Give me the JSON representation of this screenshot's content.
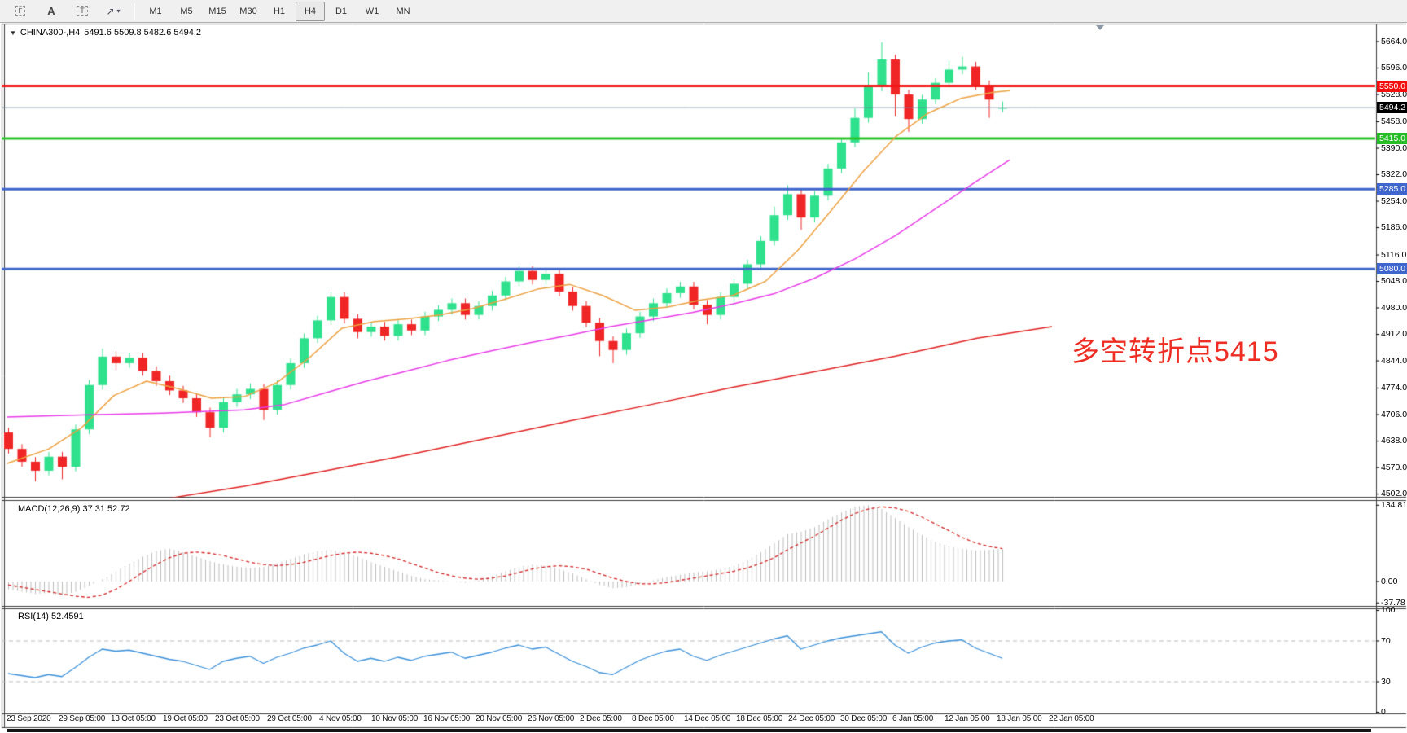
{
  "toolbar": {
    "tools": [
      {
        "name": "fibo-grid-tool",
        "glyph": "F"
      },
      {
        "name": "text-label-tool",
        "glyph": "A"
      },
      {
        "name": "text-box-tool",
        "glyph": "T"
      },
      {
        "name": "arrow-objects-tool",
        "glyph": "↗"
      }
    ],
    "timeframes": [
      "M1",
      "M5",
      "M15",
      "M30",
      "H1",
      "H4",
      "D1",
      "W1",
      "MN"
    ],
    "active_timeframe": "H4"
  },
  "chart": {
    "symbol_title": "CHINA300-,H4",
    "ohlc_text": "5491.6 5509.8 5482.6 5494.2"
  },
  "annotation": {
    "text": "多空转折点5415",
    "color": "#ee2e24"
  },
  "macd": {
    "label": "MACD(12,26,9) 37.31 52.72"
  },
  "rsi": {
    "label": "RSI(14) 52.4591"
  },
  "chart_data": {
    "type": "candlestick",
    "symbol": "CHINA300-",
    "timeframe": "H4",
    "current": {
      "open": 5491.6,
      "high": 5509.8,
      "low": 5482.6,
      "close": 5494.2
    },
    "price_axis": {
      "min": 4502.0,
      "max": 5664.0,
      "ticks": [
        5664.0,
        5596.0,
        5528.0,
        5458.0,
        5390.0,
        5322.0,
        5254.0,
        5186.0,
        5116.0,
        5048.0,
        4980.0,
        4912.0,
        4844.0,
        4774.0,
        4706.0,
        4638.0,
        4570.0,
        4502.0
      ]
    },
    "levels": [
      {
        "price": 5550.0,
        "label": "5550.0",
        "color": "#f21616",
        "thickness": 3,
        "badge": "#f40f0f"
      },
      {
        "price": 5494.2,
        "label": "5494.2",
        "color": "#708090",
        "thickness": 1,
        "badge": "#000000"
      },
      {
        "price": 5415.0,
        "label": "5415.0",
        "color": "#2cc32c",
        "thickness": 3,
        "badge": "#27bd27"
      },
      {
        "price": 5285.0,
        "label": "5285.0",
        "color": "#3f66cc",
        "thickness": 3,
        "badge": "#3f66cc"
      },
      {
        "price": 5080.0,
        "label": "5080.0",
        "color": "#3f66cc",
        "thickness": 3,
        "badge": "#3f66cc"
      }
    ],
    "bull_color": "#2fe08d",
    "bear_color": "#f02525",
    "candles": [
      [
        4660,
        4672,
        4606,
        4618
      ],
      [
        4618,
        4630,
        4572,
        4585
      ],
      [
        4585,
        4597,
        4535,
        4562
      ],
      [
        4562,
        4610,
        4550,
        4598
      ],
      [
        4598,
        4610,
        4540,
        4572
      ],
      [
        4572,
        4680,
        4560,
        4668
      ],
      [
        4668,
        4795,
        4656,
        4782
      ],
      [
        4782,
        4876,
        4770,
        4855
      ],
      [
        4855,
        4868,
        4820,
        4838
      ],
      [
        4838,
        4865,
        4826,
        4852
      ],
      [
        4852,
        4864,
        4806,
        4818
      ],
      [
        4818,
        4830,
        4780,
        4792
      ],
      [
        4792,
        4806,
        4756,
        4768
      ],
      [
        4768,
        4780,
        4736,
        4748
      ],
      [
        4748,
        4760,
        4700,
        4712
      ],
      [
        4712,
        4724,
        4648,
        4672
      ],
      [
        4672,
        4750,
        4660,
        4738
      ],
      [
        4738,
        4772,
        4726,
        4758
      ],
      [
        4758,
        4786,
        4746,
        4772
      ],
      [
        4772,
        4784,
        4692,
        4718
      ],
      [
        4718,
        4794,
        4706,
        4782
      ],
      [
        4782,
        4850,
        4770,
        4838
      ],
      [
        4838,
        4914,
        4826,
        4902
      ],
      [
        4902,
        4960,
        4890,
        4948
      ],
      [
        4948,
        5020,
        4936,
        5008
      ],
      [
        5008,
        5020,
        4940,
        4952
      ],
      [
        4952,
        4964,
        4902,
        4918
      ],
      [
        4918,
        4944,
        4906,
        4932
      ],
      [
        4932,
        4944,
        4896,
        4908
      ],
      [
        4908,
        4950,
        4896,
        4938
      ],
      [
        4938,
        4950,
        4910,
        4922
      ],
      [
        4922,
        4970,
        4910,
        4958
      ],
      [
        4958,
        4987,
        4946,
        4975
      ],
      [
        4975,
        5004,
        4963,
        4992
      ],
      [
        4992,
        5004,
        4950,
        4962
      ],
      [
        4962,
        4997,
        4950,
        4985
      ],
      [
        4985,
        5024,
        4973,
        5012
      ],
      [
        5012,
        5060,
        5000,
        5048
      ],
      [
        5048,
        5086,
        5036,
        5075
      ],
      [
        5075,
        5087,
        5040,
        5052
      ],
      [
        5052,
        5082,
        5040,
        5068
      ],
      [
        5068,
        5080,
        5010,
        5022
      ],
      [
        5022,
        5034,
        4973,
        4985
      ],
      [
        4985,
        4997,
        4930,
        4942
      ],
      [
        4942,
        4954,
        4856,
        4895
      ],
      [
        4895,
        4907,
        4838,
        4872
      ],
      [
        4872,
        4927,
        4860,
        4915
      ],
      [
        4915,
        4970,
        4903,
        4958
      ],
      [
        4958,
        5004,
        4946,
        4992
      ],
      [
        4992,
        5030,
        4980,
        5018
      ],
      [
        5018,
        5047,
        5006,
        5035
      ],
      [
        5035,
        5047,
        4976,
        4988
      ],
      [
        4988,
        5000,
        4938,
        4962
      ],
      [
        4962,
        5020,
        4950,
        5008
      ],
      [
        5008,
        5054,
        4996,
        5042
      ],
      [
        5042,
        5104,
        5030,
        5092
      ],
      [
        5092,
        5164,
        5080,
        5152
      ],
      [
        5152,
        5240,
        5140,
        5218
      ],
      [
        5218,
        5295,
        5206,
        5272
      ],
      [
        5272,
        5284,
        5180,
        5212
      ],
      [
        5212,
        5280,
        5200,
        5268
      ],
      [
        5268,
        5350,
        5256,
        5338
      ],
      [
        5338,
        5417,
        5326,
        5405
      ],
      [
        5405,
        5492,
        5393,
        5468
      ],
      [
        5468,
        5585,
        5456,
        5548
      ],
      [
        5548,
        5662,
        5536,
        5618
      ],
      [
        5618,
        5630,
        5472,
        5528
      ],
      [
        5528,
        5540,
        5432,
        5465
      ],
      [
        5465,
        5527,
        5453,
        5515
      ],
      [
        5515,
        5570,
        5503,
        5558
      ],
      [
        5558,
        5615,
        5546,
        5592
      ],
      [
        5592,
        5625,
        5580,
        5600
      ],
      [
        5600,
        5612,
        5540,
        5552
      ],
      [
        5552,
        5564,
        5468,
        5515
      ],
      [
        5491.6,
        5509.8,
        5482.6,
        5494.2
      ]
    ],
    "ma": [
      {
        "name": "fast",
        "color": "#eda03f",
        "points": [
          [
            8,
            4580
          ],
          [
            60,
            4618
          ],
          [
            100,
            4672
          ],
          [
            140,
            4755
          ],
          [
            180,
            4792
          ],
          [
            220,
            4772
          ],
          [
            260,
            4748
          ],
          [
            300,
            4752
          ],
          [
            340,
            4788
          ],
          [
            380,
            4852
          ],
          [
            420,
            4928
          ],
          [
            460,
            4945
          ],
          [
            500,
            4952
          ],
          [
            540,
            4962
          ],
          [
            580,
            4978
          ],
          [
            620,
            5002
          ],
          [
            660,
            5028
          ],
          [
            700,
            5040
          ],
          [
            740,
            5012
          ],
          [
            780,
            4974
          ],
          [
            820,
            4982
          ],
          [
            860,
            5000
          ],
          [
            900,
            5012
          ],
          [
            940,
            5048
          ],
          [
            980,
            5128
          ],
          [
            1020,
            5228
          ],
          [
            1060,
            5330
          ],
          [
            1100,
            5420
          ],
          [
            1140,
            5480
          ],
          [
            1180,
            5518
          ],
          [
            1220,
            5534
          ],
          [
            1240,
            5538
          ]
        ]
      },
      {
        "name": "mid",
        "color": "#e83ae8",
        "points": [
          [
            8,
            4700
          ],
          [
            100,
            4705
          ],
          [
            200,
            4710
          ],
          [
            300,
            4718
          ],
          [
            350,
            4732
          ],
          [
            400,
            4762
          ],
          [
            450,
            4792
          ],
          [
            500,
            4818
          ],
          [
            550,
            4845
          ],
          [
            600,
            4868
          ],
          [
            650,
            4890
          ],
          [
            700,
            4910
          ],
          [
            750,
            4932
          ],
          [
            800,
            4950
          ],
          [
            850,
            4968
          ],
          [
            900,
            4990
          ],
          [
            950,
            5016
          ],
          [
            1000,
            5056
          ],
          [
            1050,
            5106
          ],
          [
            1100,
            5166
          ],
          [
            1150,
            5236
          ],
          [
            1200,
            5306
          ],
          [
            1240,
            5360
          ]
        ]
      },
      {
        "name": "slow",
        "color": "#e02020",
        "points": [
          [
            210,
            4492
          ],
          [
            300,
            4522
          ],
          [
            400,
            4562
          ],
          [
            500,
            4602
          ],
          [
            600,
            4646
          ],
          [
            700,
            4690
          ],
          [
            800,
            4732
          ],
          [
            900,
            4776
          ],
          [
            1000,
            4816
          ],
          [
            1100,
            4856
          ],
          [
            1200,
            4902
          ],
          [
            1292,
            4932
          ]
        ]
      }
    ],
    "macd": {
      "params": [
        12,
        26,
        9
      ],
      "value": 37.31,
      "signal_value": 52.72,
      "hist_color": "#bdbdbd",
      "signal_color": "#d42525",
      "axis_ticks": [
        {
          "v": 134.81,
          "label": "134.81"
        },
        {
          "v": 0,
          "label": "0.00"
        },
        {
          "v": -37.78,
          "label": "-37.78"
        }
      ],
      "histogram": [
        -14,
        -18,
        -22,
        -20,
        -24,
        -18,
        -8,
        4,
        18,
        32,
        44,
        54,
        58,
        52,
        44,
        36,
        30,
        26,
        24,
        26,
        32,
        40,
        48,
        54,
        56,
        52,
        44,
        34,
        26,
        18,
        10,
        4,
        2,
        0,
        -2,
        2,
        10,
        18,
        26,
        30,
        28,
        22,
        14,
        4,
        -6,
        -12,
        -10,
        -4,
        2,
        8,
        12,
        16,
        18,
        22,
        28,
        38,
        52,
        68,
        84,
        88,
        96,
        110,
        122,
        132,
        135,
        128,
        112,
        96,
        82,
        70,
        62,
        58,
        55,
        56,
        58
      ],
      "signal": [
        -6,
        -10,
        -14,
        -18,
        -22,
        -26,
        -28,
        -24,
        -14,
        0,
        16,
        30,
        42,
        50,
        52,
        50,
        46,
        40,
        34,
        30,
        28,
        30,
        34,
        40,
        46,
        50,
        52,
        50,
        46,
        40,
        32,
        24,
        16,
        10,
        6,
        4,
        6,
        10,
        16,
        22,
        26,
        28,
        26,
        22,
        14,
        6,
        0,
        -4,
        -4,
        -2,
        2,
        6,
        10,
        14,
        18,
        24,
        32,
        42,
        56,
        68,
        80,
        94,
        108,
        120,
        128,
        132,
        130,
        124,
        114,
        102,
        90,
        78,
        68,
        62,
        58
      ]
    },
    "rsi": {
      "period": 14,
      "value": 52.4591,
      "color": "#3a90d9",
      "levels": [
        70,
        30
      ],
      "axis_ticks": [
        {
          "v": 100,
          "label": "100"
        },
        {
          "v": 70,
          "label": "70"
        },
        {
          "v": 30,
          "label": "30"
        },
        {
          "v": 0,
          "label": "0"
        }
      ],
      "series": [
        38,
        36,
        34,
        37,
        35,
        44,
        54,
        62,
        60,
        61,
        58,
        55,
        52,
        50,
        46,
        42,
        50,
        53,
        55,
        48,
        54,
        58,
        63,
        66,
        70,
        58,
        50,
        53,
        50,
        54,
        51,
        55,
        57,
        59,
        53,
        56,
        59,
        63,
        66,
        62,
        64,
        57,
        50,
        45,
        39,
        37,
        44,
        51,
        56,
        60,
        62,
        55,
        51,
        56,
        60,
        64,
        68,
        72,
        75,
        62,
        66,
        70,
        73,
        75,
        77,
        79,
        66,
        58,
        64,
        68,
        70,
        71,
        63,
        58,
        53
      ]
    },
    "time_axis": [
      "23 Sep 2020",
      "29 Sep 05:00",
      "13 Oct 05:00",
      "19 Oct 05:00",
      "23 Oct 05:00",
      "29 Oct 05:00",
      "4 Nov 05:00",
      "10 Nov 05:00",
      "16 Nov 05:00",
      "20 Nov 05:00",
      "26 Nov 05:00",
      "2 Dec 05:00",
      "8 Dec 05:00",
      "14 Dec 05:00",
      "18 Dec 05:00",
      "24 Dec 05:00",
      "30 Dec 05:00",
      "6 Jan 05:00",
      "12 Jan 05:00",
      "18 Jan 05:00",
      "22 Jan 05:00"
    ]
  }
}
